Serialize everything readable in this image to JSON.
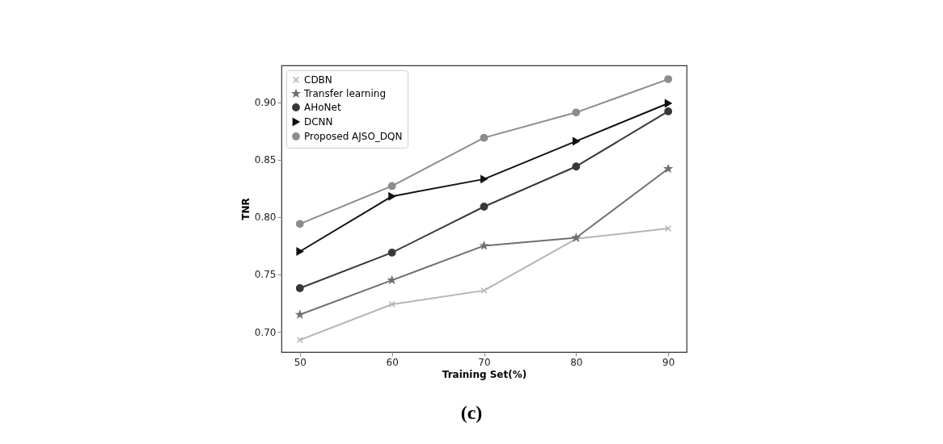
{
  "chart_data": {
    "type": "line",
    "xlabel": "Training Set(%)",
    "ylabel": "TNR",
    "x": [
      50,
      60,
      70,
      80,
      90
    ],
    "series": [
      {
        "name": "CDBN",
        "color": "#b4b4b4",
        "marker": "cross",
        "values": [
          0.693,
          0.724,
          0.736,
          0.781,
          0.79
        ]
      },
      {
        "name": "Transfer learning",
        "color": "#707070",
        "marker": "star",
        "values": [
          0.715,
          0.745,
          0.775,
          0.782,
          0.842
        ]
      },
      {
        "name": "AHoNet",
        "color": "#383838",
        "marker": "circle",
        "values": [
          0.738,
          0.769,
          0.809,
          0.844,
          0.892
        ]
      },
      {
        "name": "DCNN",
        "color": "#111111",
        "marker": "triangle",
        "values": [
          0.77,
          0.818,
          0.833,
          0.866,
          0.899
        ]
      },
      {
        "name": "Proposed AJSO_DQN",
        "color": "#8c8c8c",
        "marker": "circle",
        "values": [
          0.794,
          0.827,
          0.869,
          0.891,
          0.92
        ]
      }
    ],
    "xlim": [
      48,
      92
    ],
    "xticks": [
      50,
      60,
      70,
      80,
      90
    ],
    "ylim": [
      0.6825,
      0.932
    ],
    "yticks": [
      {
        "value": 0.7,
        "label": "0.70"
      },
      0.75,
      {
        "value": 0.8,
        "label": "0.80"
      },
      0.85,
      {
        "value": 0.9,
        "label": "0.90"
      }
    ],
    "grid": false,
    "legend": "top left",
    "annotations": [
      "(c)"
    ]
  }
}
